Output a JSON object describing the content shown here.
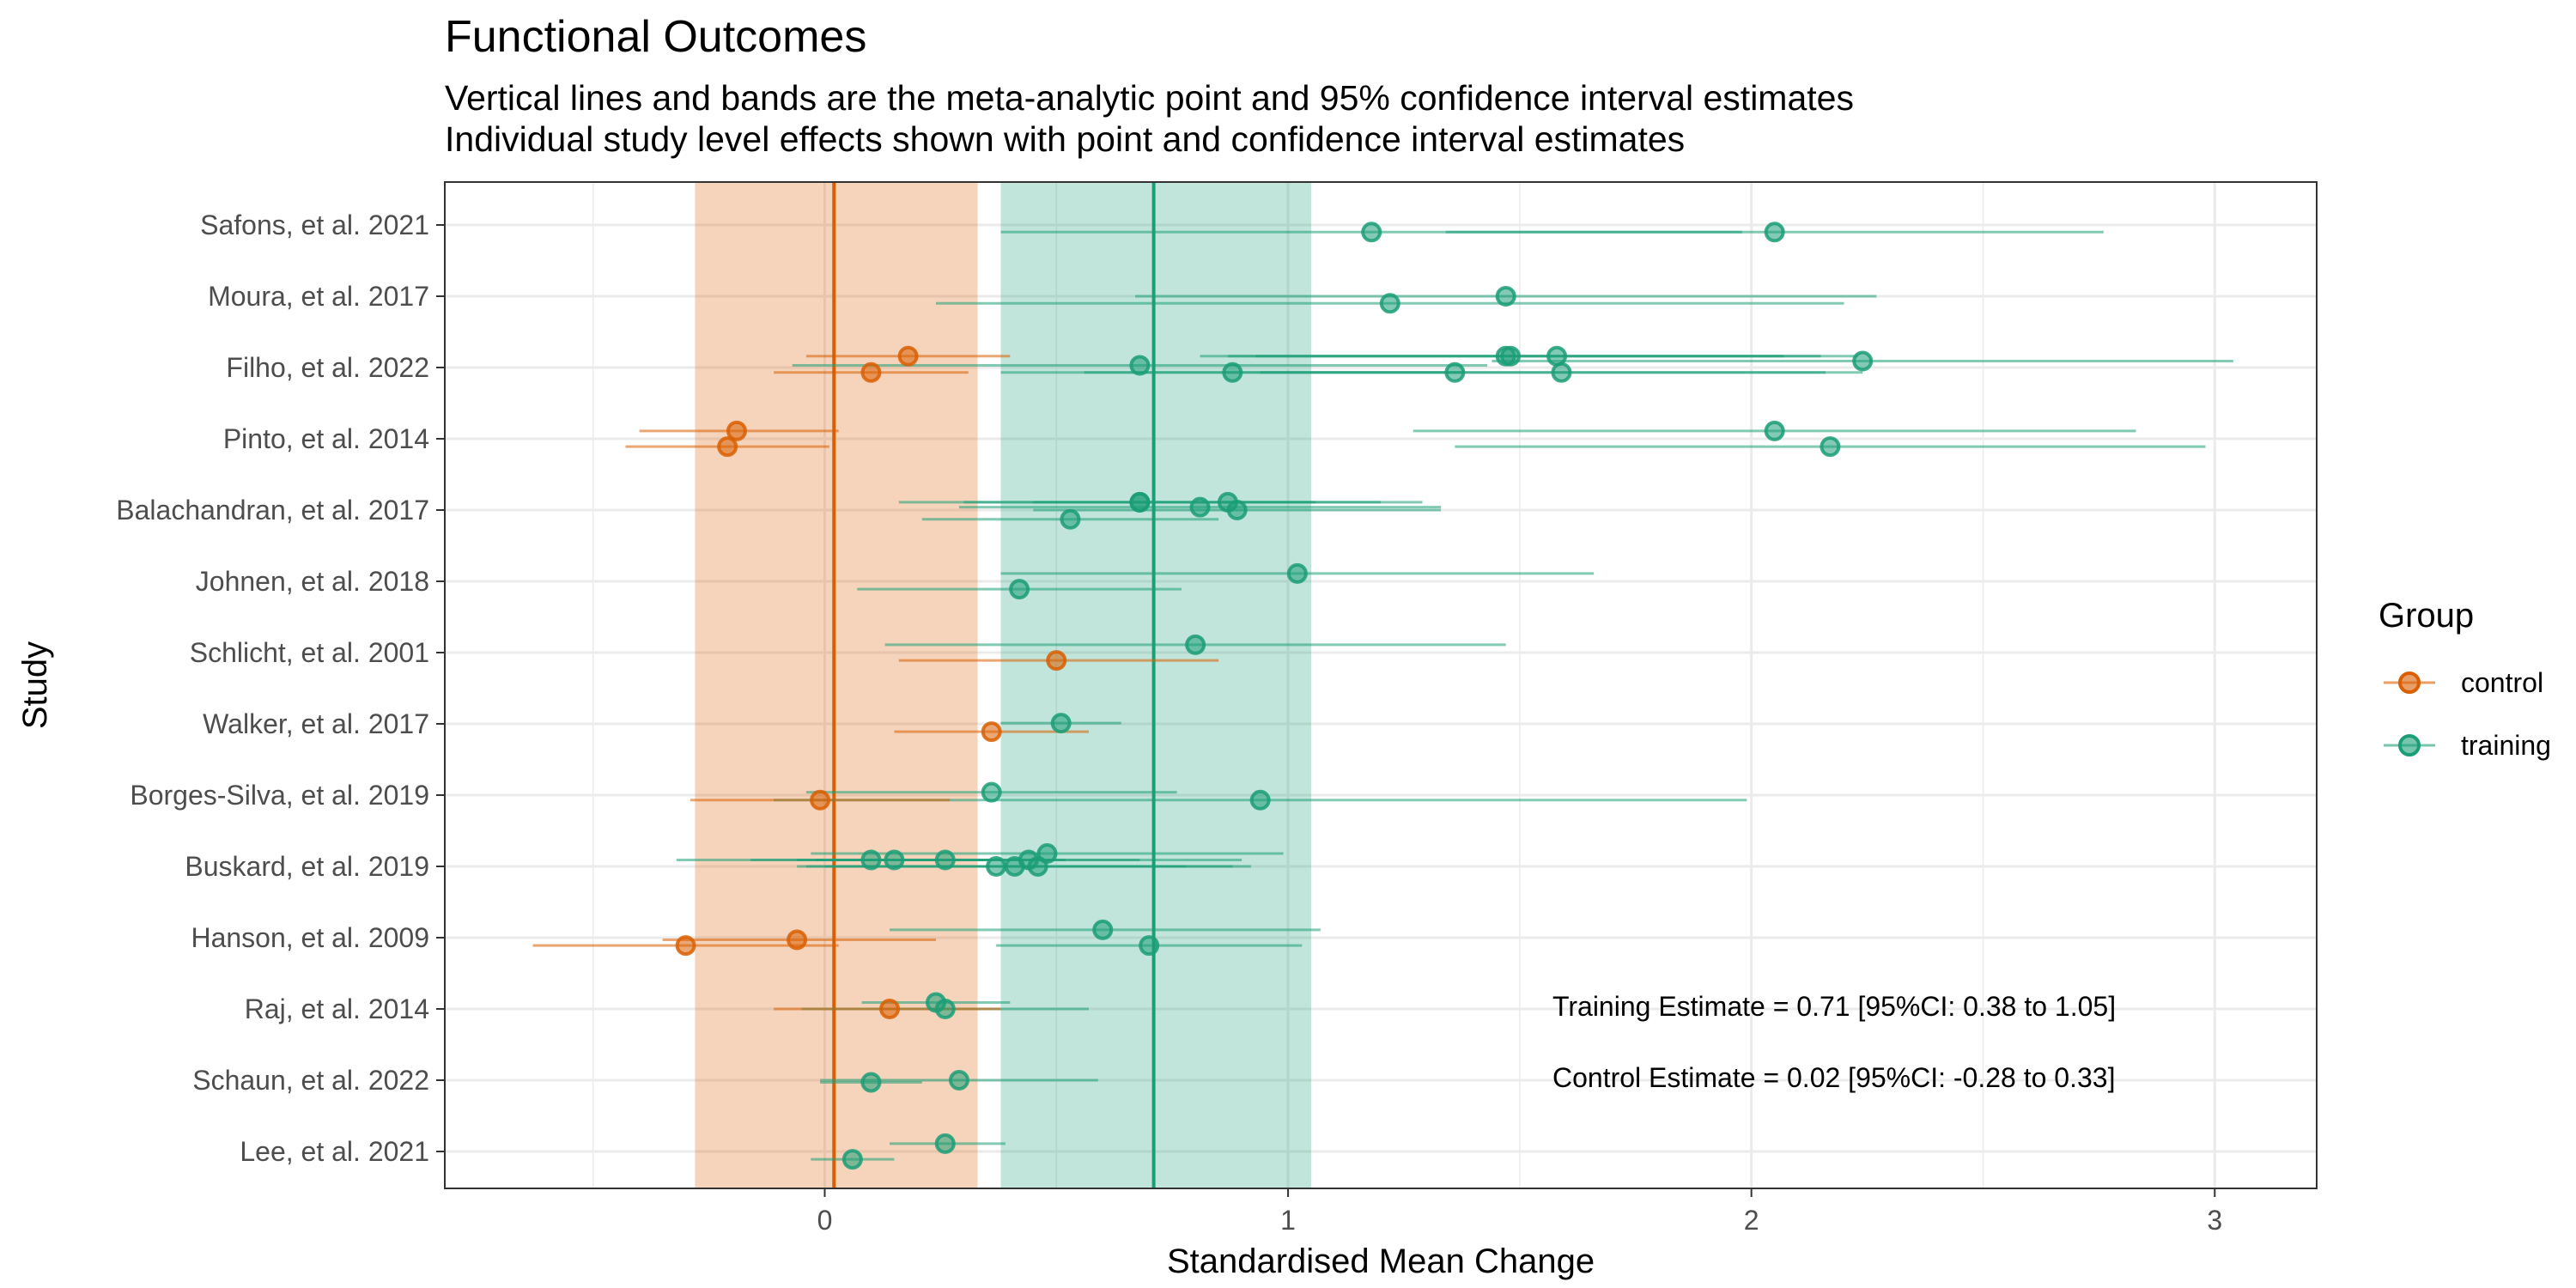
{
  "chart_data": {
    "type": "scatter",
    "title": "Functional Outcomes",
    "subtitle": [
      "Vertical lines and bands are the meta-analytic point and 95% confidence interval estimates",
      "Individual study level effects shown with point and confidence interval estimates"
    ],
    "xlabel": "Standardised Mean Change",
    "ylabel": "Study",
    "xlim": [
      -0.82,
      3.22
    ],
    "xticks": [
      0,
      1,
      2,
      3
    ],
    "grid": true,
    "legend": {
      "title": "Group",
      "placement": "right",
      "entries": [
        "control",
        "training"
      ]
    },
    "colors": {
      "control": "#D95F02",
      "training": "#1B9E77"
    },
    "studies": [
      "Safons, et al. 2021",
      "Moura, et al. 2017",
      "Filho, et al. 2022",
      "Pinto, et al. 2014",
      "Balachandran, et al. 2017",
      "Johnen, et al. 2018",
      "Schlicht, et al. 2001",
      "Walker, et al. 2017",
      "Borges-Silva, et al. 2019",
      "Buskard, et al. 2019",
      "Hanson, et al. 2009",
      "Raj, et al. 2014",
      "Schaun, et al. 2022",
      "Lee, et al. 2021"
    ],
    "meta_estimates": {
      "training": {
        "estimate": 0.71,
        "ci": [
          0.38,
          1.05
        ]
      },
      "control": {
        "estimate": 0.02,
        "ci": [
          -0.28,
          0.33
        ]
      }
    },
    "annotations": [
      "Training Estimate = 0.71 [95%CI: 0.38 to 1.05]",
      "Control Estimate = 0.02 [95%CI: -0.28 to 0.33]"
    ],
    "series": [
      {
        "name": "training",
        "points": [
          {
            "study": "Safons, et al. 2021",
            "est": 1.18,
            "lo": 0.38,
            "hi": 1.98,
            "offset": 0.1
          },
          {
            "study": "Safons, et al. 2021",
            "est": 2.05,
            "lo": 1.34,
            "hi": 2.76,
            "offset": 0.1
          },
          {
            "study": "Moura, et al. 2017",
            "est": 1.22,
            "lo": 0.24,
            "hi": 2.2,
            "offset": 0.1
          },
          {
            "study": "Moura, et al. 2017",
            "est": 1.47,
            "lo": 0.67,
            "hi": 2.27,
            "offset": 0.0
          },
          {
            "study": "Filho, et al. 2022",
            "est": 0.68,
            "lo": -0.07,
            "hi": 1.43,
            "offset": -0.03
          },
          {
            "study": "Filho, et al. 2022",
            "est": 0.88,
            "lo": 0.38,
            "hi": 1.38,
            "offset": 0.07
          },
          {
            "study": "Filho, et al. 2022",
            "est": 1.36,
            "lo": 0.56,
            "hi": 2.16,
            "offset": 0.07
          },
          {
            "study": "Filho, et al. 2022",
            "est": 1.47,
            "lo": 0.87,
            "hi": 2.07,
            "offset": -0.16
          },
          {
            "study": "Filho, et al. 2022",
            "est": 1.48,
            "lo": 0.81,
            "hi": 2.15,
            "offset": -0.16
          },
          {
            "study": "Filho, et al. 2022",
            "est": 1.58,
            "lo": 0.93,
            "hi": 2.23,
            "offset": -0.16
          },
          {
            "study": "Filho, et al. 2022",
            "est": 1.59,
            "lo": 0.94,
            "hi": 2.24,
            "offset": 0.07
          },
          {
            "study": "Filho, et al. 2022",
            "est": 2.24,
            "lo": 1.44,
            "hi": 3.04,
            "offset": -0.09
          },
          {
            "study": "Pinto, et al. 2014",
            "est": 2.05,
            "lo": 1.27,
            "hi": 2.83,
            "offset": -0.11
          },
          {
            "study": "Pinto, et al. 2014",
            "est": 2.17,
            "lo": 1.36,
            "hi": 2.98,
            "offset": 0.11
          },
          {
            "study": "Balachandran, et al. 2017",
            "est": 0.53,
            "lo": 0.21,
            "hi": 0.85,
            "offset": 0.13
          },
          {
            "study": "Balachandran, et al. 2017",
            "est": 0.68,
            "lo": 0.3,
            "hi": 1.06,
            "offset": -0.11
          },
          {
            "study": "Balachandran, et al. 2017",
            "est": 0.68,
            "lo": 0.16,
            "hi": 1.2,
            "offset": -0.11
          },
          {
            "study": "Balachandran, et al. 2017",
            "est": 0.81,
            "lo": 0.29,
            "hi": 1.33,
            "offset": -0.04
          },
          {
            "study": "Balachandran, et al. 2017",
            "est": 0.87,
            "lo": 0.45,
            "hi": 1.29,
            "offset": -0.11
          },
          {
            "study": "Balachandran, et al. 2017",
            "est": 0.89,
            "lo": 0.45,
            "hi": 1.33,
            "offset": 0.0
          },
          {
            "study": "Johnen, et al. 2018",
            "est": 0.42,
            "lo": 0.07,
            "hi": 0.77,
            "offset": 0.11
          },
          {
            "study": "Johnen, et al. 2018",
            "est": 1.02,
            "lo": 0.38,
            "hi": 1.66,
            "offset": -0.11
          },
          {
            "study": "Schlicht, et al. 2001",
            "est": 0.8,
            "lo": 0.13,
            "hi": 1.47,
            "offset": -0.11
          },
          {
            "study": "Walker, et al. 2017",
            "est": 0.51,
            "lo": 0.38,
            "hi": 0.64,
            "offset": -0.01
          },
          {
            "study": "Borges-Silva, et al. 2019",
            "est": 0.36,
            "lo": -0.04,
            "hi": 0.76,
            "offset": -0.04
          },
          {
            "study": "Borges-Silva, et al. 2019",
            "est": 0.94,
            "lo": -0.11,
            "hi": 1.99,
            "offset": 0.07
          },
          {
            "study": "Buskard, et al. 2019",
            "est": 0.1,
            "lo": -0.32,
            "hi": 0.52,
            "offset": -0.09
          },
          {
            "study": "Buskard, et al. 2019",
            "est": 0.15,
            "lo": -0.06,
            "hi": 0.36,
            "offset": -0.09
          },
          {
            "study": "Buskard, et al. 2019",
            "est": 0.26,
            "lo": -0.16,
            "hi": 0.68,
            "offset": -0.09
          },
          {
            "study": "Buskard, et al. 2019",
            "est": 0.37,
            "lo": -0.04,
            "hi": 0.78,
            "offset": 0.0
          },
          {
            "study": "Buskard, et al. 2019",
            "est": 0.41,
            "lo": -0.06,
            "hi": 0.88,
            "offset": 0.0
          },
          {
            "study": "Buskard, et al. 2019",
            "est": 0.44,
            "lo": -0.02,
            "hi": 0.9,
            "offset": -0.09
          },
          {
            "study": "Buskard, et al. 2019",
            "est": 0.46,
            "lo": 0.0,
            "hi": 0.92,
            "offset": 0.0
          },
          {
            "study": "Buskard, et al. 2019",
            "est": 0.48,
            "lo": -0.03,
            "hi": 0.99,
            "offset": -0.18
          },
          {
            "study": "Hanson, et al. 2009",
            "est": 0.6,
            "lo": 0.14,
            "hi": 1.07,
            "offset": -0.11
          },
          {
            "study": "Hanson, et al. 2009",
            "est": 0.7,
            "lo": 0.37,
            "hi": 1.03,
            "offset": 0.11
          },
          {
            "study": "Raj, et al. 2014",
            "est": 0.24,
            "lo": 0.08,
            "hi": 0.4,
            "offset": -0.09
          },
          {
            "study": "Raj, et al. 2014",
            "est": 0.26,
            "lo": -0.05,
            "hi": 0.57,
            "offset": 0.0
          },
          {
            "study": "Schaun, et al. 2022",
            "est": 0.1,
            "lo": -0.01,
            "hi": 0.21,
            "offset": 0.03
          },
          {
            "study": "Schaun, et al. 2022",
            "est": 0.29,
            "lo": -0.01,
            "hi": 0.59,
            "offset": 0.0
          },
          {
            "study": "Lee, et al. 2021",
            "est": 0.06,
            "lo": -0.03,
            "hi": 0.15,
            "offset": 0.11
          },
          {
            "study": "Lee, et al. 2021",
            "est": 0.26,
            "lo": 0.14,
            "hi": 0.39,
            "offset": -0.11
          }
        ]
      },
      {
        "name": "control",
        "points": [
          {
            "study": "Filho, et al. 2022",
            "est": 0.1,
            "lo": -0.11,
            "hi": 0.31,
            "offset": 0.07
          },
          {
            "study": "Filho, et al. 2022",
            "est": 0.18,
            "lo": -0.04,
            "hi": 0.4,
            "offset": -0.16
          },
          {
            "study": "Pinto, et al. 2014",
            "est": -0.19,
            "lo": -0.4,
            "hi": 0.03,
            "offset": -0.11
          },
          {
            "study": "Pinto, et al. 2014",
            "est": -0.21,
            "lo": -0.43,
            "hi": 0.01,
            "offset": 0.11
          },
          {
            "study": "Schlicht, et al. 2001",
            "est": 0.5,
            "lo": 0.16,
            "hi": 0.85,
            "offset": 0.11
          },
          {
            "study": "Walker, et al. 2017",
            "est": 0.36,
            "lo": 0.15,
            "hi": 0.57,
            "offset": 0.11
          },
          {
            "study": "Borges-Silva, et al. 2019",
            "est": -0.01,
            "lo": -0.29,
            "hi": 0.27,
            "offset": 0.07
          },
          {
            "study": "Hanson, et al. 2009",
            "est": -0.06,
            "lo": -0.35,
            "hi": 0.24,
            "offset": 0.03
          },
          {
            "study": "Hanson, et al. 2009",
            "est": -0.3,
            "lo": -0.63,
            "hi": 0.03,
            "offset": 0.11
          },
          {
            "study": "Raj, et al. 2014",
            "est": 0.14,
            "lo": -0.11,
            "hi": 0.38,
            "offset": 0.0
          }
        ]
      }
    ]
  }
}
